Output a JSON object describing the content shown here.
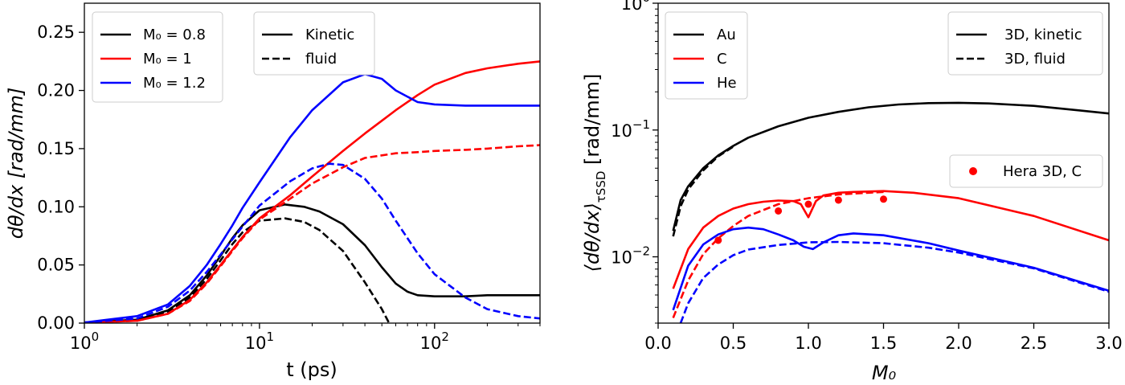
{
  "chart_data": [
    {
      "type": "line",
      "xlabel": "t (ps)",
      "ylabel": "dθ/dx [rad/mm]",
      "xscale": "log",
      "xlim": [
        1,
        400
      ],
      "ylim": [
        0,
        0.275
      ],
      "xticks": [
        {
          "value": 1,
          "base": "10",
          "exp": "0"
        },
        {
          "value": 10,
          "base": "10",
          "exp": "1"
        },
        {
          "value": 100,
          "base": "10",
          "exp": "2"
        }
      ],
      "yticks": [
        "0.00",
        "0.05",
        "0.10",
        "0.15",
        "0.20",
        "0.25"
      ],
      "legend_series_labels": [
        "M₀ = 0.8",
        "M₀ = 1",
        "M₀ = 1.2"
      ],
      "legend_style_labels": [
        "Kinetic",
        "fluid"
      ],
      "colors": {
        "M0_0.8": "#000000",
        "M0_1": "#ff0000",
        "M0_1.2": "#0000ff"
      },
      "series": [
        {
          "name": "M₀ = 0.8",
          "style": "Kinetic",
          "color": "#000000",
          "x": [
            1,
            2,
            3,
            4,
            5,
            6,
            7,
            8,
            10,
            14,
            18,
            22,
            30,
            40,
            50,
            60,
            70,
            80,
            100,
            150,
            200,
            400
          ],
          "y": [
            0.0005,
            0.003,
            0.011,
            0.024,
            0.041,
            0.058,
            0.073,
            0.084,
            0.097,
            0.102,
            0.1,
            0.096,
            0.085,
            0.067,
            0.048,
            0.034,
            0.027,
            0.024,
            0.023,
            0.023,
            0.024,
            0.024
          ]
        },
        {
          "name": "M₀ = 0.8",
          "style": "fluid",
          "color": "#000000",
          "x": [
            1,
            2,
            3,
            4,
            5,
            6,
            7,
            8,
            10,
            14,
            18,
            22,
            30,
            40,
            50,
            55
          ],
          "y": [
            0.0005,
            0.003,
            0.01,
            0.022,
            0.038,
            0.054,
            0.068,
            0.078,
            0.088,
            0.09,
            0.087,
            0.08,
            0.062,
            0.035,
            0.012,
            0.0
          ]
        },
        {
          "name": "M₀ = 1",
          "style": "Kinetic",
          "color": "#ff0000",
          "x": [
            1,
            2,
            3,
            4,
            5,
            6,
            7,
            8,
            10,
            15,
            20,
            30,
            40,
            50,
            60,
            80,
            100,
            150,
            200,
            300,
            400
          ],
          "y": [
            0.0005,
            0.002,
            0.008,
            0.02,
            0.035,
            0.05,
            0.063,
            0.074,
            0.09,
            0.11,
            0.126,
            0.148,
            0.163,
            0.174,
            0.183,
            0.196,
            0.205,
            0.215,
            0.219,
            0.223,
            0.225
          ]
        },
        {
          "name": "M₀ = 1",
          "style": "fluid",
          "color": "#ff0000",
          "x": [
            1,
            2,
            3,
            4,
            5,
            6,
            7,
            8,
            10,
            15,
            20,
            30,
            40,
            60,
            80,
            100,
            150,
            200,
            300,
            400
          ],
          "y": [
            0.0005,
            0.002,
            0.008,
            0.019,
            0.034,
            0.049,
            0.062,
            0.073,
            0.089,
            0.107,
            0.12,
            0.134,
            0.142,
            0.146,
            0.147,
            0.148,
            0.149,
            0.15,
            0.152,
            0.153
          ]
        },
        {
          "name": "M₀ = 1.2",
          "style": "Kinetic",
          "color": "#0000ff",
          "x": [
            1,
            2,
            3,
            4,
            5,
            6,
            7,
            8,
            10,
            15,
            20,
            30,
            40,
            50,
            60,
            80,
            100,
            150,
            200,
            400
          ],
          "y": [
            0.0005,
            0.006,
            0.016,
            0.032,
            0.05,
            0.068,
            0.084,
            0.099,
            0.121,
            0.16,
            0.183,
            0.207,
            0.214,
            0.21,
            0.2,
            0.19,
            0.188,
            0.187,
            0.187,
            0.187
          ]
        },
        {
          "name": "M₀ = 1.2",
          "style": "fluid",
          "color": "#0000ff",
          "x": [
            1,
            2,
            3,
            4,
            5,
            6,
            7,
            8,
            10,
            15,
            20,
            25,
            30,
            40,
            50,
            60,
            80,
            100,
            150,
            200,
            300,
            400
          ],
          "y": [
            0.0005,
            0.004,
            0.014,
            0.028,
            0.044,
            0.059,
            0.072,
            0.083,
            0.101,
            0.122,
            0.133,
            0.137,
            0.136,
            0.124,
            0.107,
            0.088,
            0.06,
            0.042,
            0.022,
            0.012,
            0.006,
            0.004
          ]
        }
      ]
    },
    {
      "type": "line",
      "xlabel": "M₀",
      "ylabel": "⟨dθ/dx⟩ [rad/mm]",
      "ylabel_subscript": "τSSD",
      "yscale": "log",
      "xlim": [
        0,
        3
      ],
      "ylim": [
        0.003,
        1
      ],
      "xticks": [
        "0.0",
        "0.5",
        "1.0",
        "1.5",
        "2.0",
        "2.5",
        "3.0"
      ],
      "yticks": [
        {
          "value": 0.01,
          "base": "10",
          "exp": "−2"
        },
        {
          "value": 0.1,
          "base": "10",
          "exp": "−1"
        },
        {
          "value": 1,
          "base": "10",
          "exp": "0"
        }
      ],
      "legend_series_labels": [
        "Au",
        "C",
        "He"
      ],
      "legend_style_labels": [
        "3D, kinetic",
        "3D, fluid"
      ],
      "legend_points_label": "Hera 3D, C",
      "series": [
        {
          "name": "Au",
          "style": "3D, kinetic",
          "color": "#000000",
          "x": [
            0.1,
            0.15,
            0.2,
            0.3,
            0.4,
            0.5,
            0.6,
            0.8,
            1.0,
            1.2,
            1.4,
            1.6,
            1.8,
            2.0,
            2.2,
            2.5,
            2.8,
            3.0
          ],
          "y": [
            0.016,
            0.028,
            0.036,
            0.05,
            0.063,
            0.075,
            0.087,
            0.107,
            0.125,
            0.139,
            0.151,
            0.159,
            0.163,
            0.164,
            0.162,
            0.155,
            0.143,
            0.135
          ]
        },
        {
          "name": "Au",
          "style": "3D, fluid",
          "color": "#000000",
          "x": [
            0.1,
            0.15,
            0.2,
            0.3,
            0.4,
            0.5
          ],
          "y": [
            0.0145,
            0.025,
            0.034,
            0.048,
            0.062,
            0.074
          ]
        },
        {
          "name": "C",
          "style": "3D, kinetic",
          "color": "#ff0000",
          "x": [
            0.1,
            0.2,
            0.3,
            0.4,
            0.5,
            0.6,
            0.7,
            0.8,
            0.9,
            0.95,
            0.98,
            1.0,
            1.02,
            1.05,
            1.1,
            1.2,
            1.3,
            1.5,
            1.7,
            2.0,
            2.5,
            3.0
          ],
          "y": [
            0.0056,
            0.0115,
            0.017,
            0.021,
            0.024,
            0.026,
            0.0272,
            0.0278,
            0.0275,
            0.026,
            0.0225,
            0.0205,
            0.023,
            0.0275,
            0.0305,
            0.032,
            0.0325,
            0.033,
            0.032,
            0.029,
            0.021,
            0.0135
          ]
        },
        {
          "name": "C",
          "style": "3D, fluid",
          "color": "#ff0000",
          "x": [
            0.1,
            0.2,
            0.3,
            0.4,
            0.5,
            0.6,
            0.8,
            1.0,
            1.2,
            1.4,
            1.5
          ],
          "y": [
            0.0033,
            0.0065,
            0.0105,
            0.014,
            0.0175,
            0.021,
            0.026,
            0.029,
            0.031,
            0.032,
            0.0325
          ]
        },
        {
          "name": "He",
          "style": "3D, kinetic",
          "color": "#0000ff",
          "x": [
            0.1,
            0.2,
            0.3,
            0.4,
            0.5,
            0.6,
            0.7,
            0.8,
            0.9,
            0.97,
            1.03,
            1.1,
            1.2,
            1.3,
            1.5,
            1.8,
            2.0,
            2.5,
            3.0
          ],
          "y": [
            0.0038,
            0.0085,
            0.0125,
            0.015,
            0.0165,
            0.017,
            0.0165,
            0.015,
            0.0135,
            0.012,
            0.0115,
            0.013,
            0.0148,
            0.0153,
            0.0148,
            0.0128,
            0.0112,
            0.0082,
            0.0054
          ]
        },
        {
          "name": "He",
          "style": "3D, fluid",
          "color": "#0000ff",
          "x": [
            0.15,
            0.2,
            0.3,
            0.4,
            0.5,
            0.6,
            0.8,
            1.0,
            1.2,
            1.5,
            1.8,
            2.0,
            2.5,
            3.0
          ],
          "y": [
            0.003,
            0.0043,
            0.0068,
            0.0087,
            0.0103,
            0.0114,
            0.0124,
            0.013,
            0.0131,
            0.0128,
            0.0118,
            0.0108,
            0.0081,
            0.0053
          ]
        }
      ],
      "points": {
        "name": "Hera 3D, C",
        "color": "#ff0000",
        "x": [
          0.4,
          0.8,
          1.0,
          1.2,
          1.5
        ],
        "y": [
          0.0135,
          0.023,
          0.026,
          0.028,
          0.0285
        ]
      }
    }
  ]
}
